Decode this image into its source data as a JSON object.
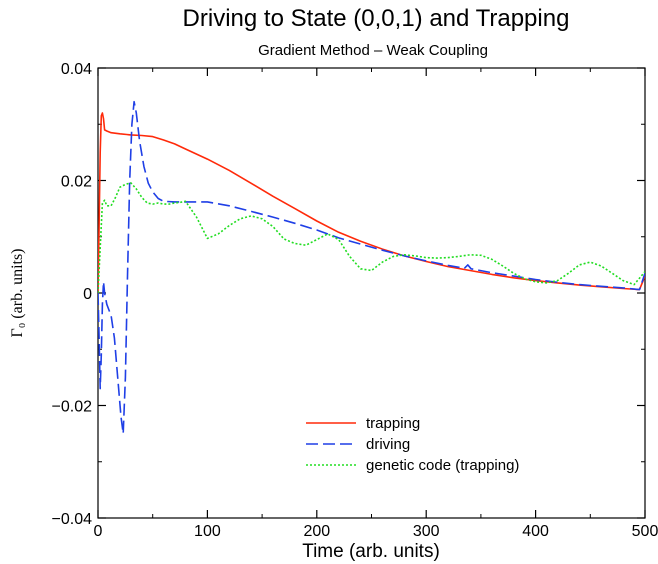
{
  "chart_data": {
    "type": "line",
    "title": "Driving to State (0,0,1) and Trapping",
    "subtitle": "Gradient Method – Weak Coupling",
    "xlabel": "Time (arb. units)",
    "ylabel": "Γ₀ (arb. units)",
    "xlim": [
      0,
      500
    ],
    "ylim": [
      -0.04,
      0.04
    ],
    "xticks": [
      "0",
      "100",
      "200",
      "300",
      "400",
      "500"
    ],
    "yticks": [
      "0.04",
      "0.02",
      "0",
      "-0.02",
      "-0.04"
    ],
    "grid": false,
    "legend_position": "bottom-center",
    "series": [
      {
        "name": "trapping",
        "color": "#ff2a0a",
        "dash": "solid",
        "x": [
          0,
          1,
          2,
          3,
          4,
          5,
          6,
          8,
          12,
          20,
          30,
          40,
          50,
          60,
          70,
          80,
          100,
          120,
          140,
          160,
          180,
          200,
          220,
          240,
          260,
          280,
          300,
          320,
          340,
          360,
          380,
          400,
          420,
          440,
          460,
          480,
          495,
          500
        ],
        "y": [
          0.0,
          0.012,
          0.025,
          0.0315,
          0.032,
          0.031,
          0.029,
          0.0288,
          0.0285,
          0.0283,
          0.0281,
          0.028,
          0.0278,
          0.0272,
          0.0265,
          0.0256,
          0.0238,
          0.0218,
          0.0195,
          0.0172,
          0.015,
          0.0128,
          0.0108,
          0.0092,
          0.0078,
          0.0066,
          0.0056,
          0.0047,
          0.004,
          0.0033,
          0.0027,
          0.0022,
          0.0018,
          0.0014,
          0.0011,
          0.0008,
          0.0006,
          0.003
        ]
      },
      {
        "name": "driving",
        "color": "#1f3fe6",
        "dash": "dashed",
        "x": [
          0,
          1,
          2,
          3,
          4,
          5,
          6,
          8,
          10,
          12,
          15,
          18,
          21,
          23,
          25,
          27,
          29,
          31,
          33,
          35,
          38,
          42,
          46,
          50,
          55,
          60,
          70,
          80,
          90,
          100,
          120,
          140,
          160,
          180,
          200,
          220,
          240,
          260,
          280,
          300,
          320,
          335,
          338,
          341,
          360,
          380,
          400,
          420,
          440,
          460,
          480,
          495,
          500
        ],
        "y": [
          0.0,
          -0.008,
          -0.017,
          -0.011,
          -0.002,
          0.002,
          0.0,
          -0.002,
          -0.003,
          -0.004,
          -0.008,
          -0.015,
          -0.022,
          -0.025,
          -0.015,
          0.003,
          0.02,
          0.03,
          0.034,
          0.032,
          0.027,
          0.0225,
          0.0195,
          0.018,
          0.0168,
          0.0163,
          0.0162,
          0.0162,
          0.0162,
          0.0162,
          0.0155,
          0.0145,
          0.0135,
          0.0124,
          0.0112,
          0.0098,
          0.0087,
          0.0076,
          0.0066,
          0.0057,
          0.0049,
          0.0044,
          0.005,
          0.0043,
          0.0036,
          0.003,
          0.0024,
          0.0019,
          0.0015,
          0.0012,
          0.0009,
          0.0006,
          0.0035
        ]
      },
      {
        "name": "genetic code (trapping)",
        "color": "#22dd22",
        "dash": "dotted",
        "x": [
          0,
          2,
          4,
          6,
          8,
          12,
          16,
          20,
          25,
          30,
          35,
          40,
          45,
          50,
          55,
          60,
          65,
          70,
          75,
          80,
          90,
          100,
          110,
          120,
          130,
          140,
          150,
          160,
          170,
          180,
          190,
          200,
          210,
          220,
          230,
          240,
          250,
          260,
          270,
          280,
          290,
          300,
          310,
          320,
          330,
          340,
          350,
          360,
          370,
          380,
          390,
          400,
          410,
          420,
          430,
          440,
          450,
          460,
          470,
          480,
          490,
          500
        ],
        "y": [
          0.0,
          0.008,
          0.016,
          0.0165,
          0.0155,
          0.0155,
          0.017,
          0.0188,
          0.0193,
          0.0196,
          0.0185,
          0.017,
          0.016,
          0.0158,
          0.016,
          0.0158,
          0.0158,
          0.016,
          0.0161,
          0.0163,
          0.0135,
          0.0097,
          0.0105,
          0.012,
          0.0132,
          0.0137,
          0.0132,
          0.0118,
          0.0096,
          0.0088,
          0.0085,
          0.0095,
          0.0105,
          0.0095,
          0.0065,
          0.0043,
          0.004,
          0.0055,
          0.0065,
          0.0068,
          0.0066,
          0.0063,
          0.0062,
          0.0063,
          0.0065,
          0.0068,
          0.0067,
          0.006,
          0.0048,
          0.0035,
          0.0025,
          0.002,
          0.0018,
          0.0022,
          0.0035,
          0.005,
          0.0055,
          0.0048,
          0.0035,
          0.0022,
          0.0015,
          0.0038
        ]
      }
    ]
  }
}
